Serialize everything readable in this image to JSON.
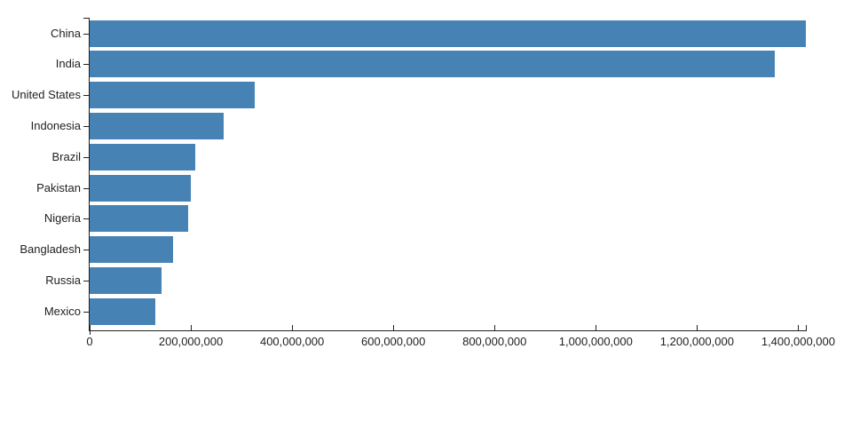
{
  "chart_data": {
    "type": "bar",
    "orientation": "horizontal",
    "title": "",
    "xlabel": "",
    "ylabel": "",
    "categories": [
      "China",
      "India",
      "United States",
      "Indonesia",
      "Brazil",
      "Pakistan",
      "Nigeria",
      "Bangladesh",
      "Russia",
      "Mexico"
    ],
    "values": [
      1415045928,
      1354051854,
      326766748,
      266794980,
      210867954,
      200813818,
      195875237,
      166368149,
      143964709,
      130759074
    ],
    "xlim": [
      0,
      1415045928
    ],
    "x_ticks": [
      0,
      200000000,
      400000000,
      600000000,
      800000000,
      1000000000,
      1200000000,
      1400000000
    ],
    "x_tick_labels": [
      "0",
      "200,000,000",
      "400,000,000",
      "600,000,000",
      "800,000,000",
      "1,000,000,000",
      "1,200,000,000",
      "1,400,000,000"
    ],
    "grid": false,
    "legend": false,
    "bar_color": "#4682b4",
    "axis_color": "#222222",
    "text_color": "#222222"
  }
}
